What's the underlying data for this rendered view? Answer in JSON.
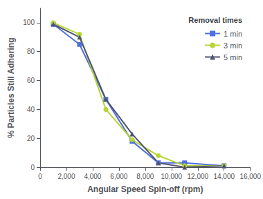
{
  "chart_data": {
    "type": "line",
    "x_label": "Angular Speed Spin-off (rpm)",
    "y_label": "% Particles Still Adhering",
    "legend_title": "Removal times",
    "legend": "upper right",
    "grid": false,
    "xlim": [
      0,
      16000
    ],
    "ylim": [
      0,
      110
    ],
    "xticks": [
      0,
      2000,
      4000,
      6000,
      8000,
      10000,
      12000,
      14000,
      16000
    ],
    "yticks": [
      0,
      20,
      40,
      60,
      80,
      100
    ],
    "x": [
      1000,
      3000,
      5000,
      7000,
      9000,
      11000,
      14000
    ],
    "series": [
      {
        "name": "1 min",
        "marker": "square",
        "values": [
          99,
          85,
          47,
          18,
          3,
          3,
          1
        ]
      },
      {
        "name": "3 min",
        "marker": "circle",
        "values": [
          100,
          92,
          40,
          19,
          8,
          1,
          1
        ]
      },
      {
        "name": "5 min",
        "marker": "triangle",
        "values": [
          99,
          90,
          47,
          23,
          3,
          0,
          1
        ]
      }
    ]
  }
}
